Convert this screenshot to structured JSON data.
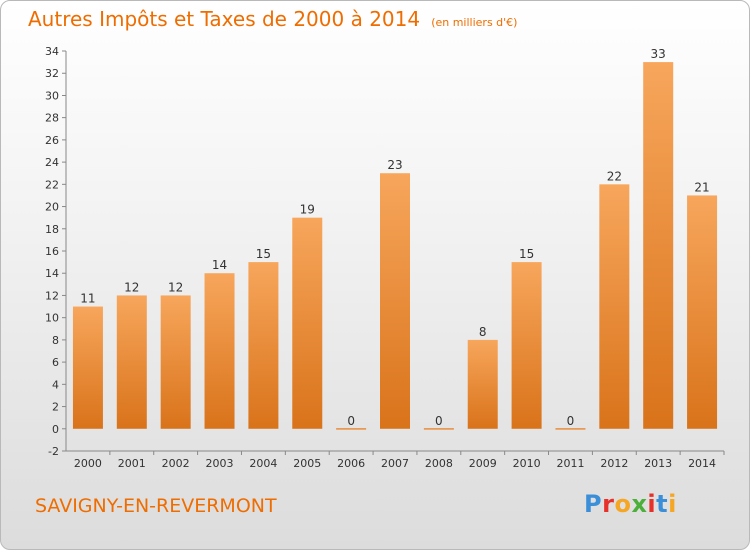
{
  "header": {
    "title": "Autres Impôts et Taxes de 2000 à 2014",
    "unit": "(en milliers d'€)"
  },
  "footer": {
    "commune": "SAVIGNY-EN-REVERMONT",
    "logo_letters": [
      "P",
      "r",
      "o",
      "x",
      "i",
      "t",
      "i"
    ],
    "logo_colors": [
      "#3a8fd8",
      "#e8302a",
      "#f5a623",
      "#4caf3a",
      "#e8302a",
      "#3a8fd8",
      "#f5a623"
    ]
  },
  "colors": {
    "bar_light": "#f7a65c",
    "bar_dark": "#d9731a",
    "accent": "#ef6d00"
  },
  "chart_data": {
    "type": "bar",
    "title": "Autres Impôts et Taxes de 2000 à 2014",
    "xlabel": "",
    "ylabel": "",
    "categories": [
      "2000",
      "2001",
      "2002",
      "2003",
      "2004",
      "2005",
      "2006",
      "2007",
      "2008",
      "2009",
      "2010",
      "2011",
      "2012",
      "2013",
      "2014"
    ],
    "values": [
      11,
      12,
      12,
      14,
      15,
      19,
      0,
      23,
      0,
      8,
      15,
      0,
      22,
      33,
      21
    ],
    "ylim": [
      -2,
      34
    ],
    "yticks": [
      -2,
      0,
      2,
      4,
      6,
      8,
      10,
      12,
      14,
      16,
      18,
      20,
      22,
      24,
      26,
      28,
      30,
      32,
      34
    ],
    "grid": false,
    "legend": "none"
  }
}
